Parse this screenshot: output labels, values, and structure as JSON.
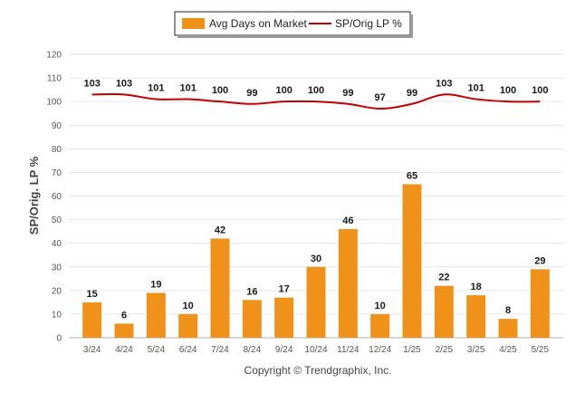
{
  "chart_data": {
    "type": "bar",
    "ylabel": "SP/Orig. LP %",
    "ylim": [
      0,
      120
    ],
    "yticks": [
      0,
      10,
      20,
      30,
      40,
      50,
      60,
      70,
      80,
      90,
      100,
      110,
      120
    ],
    "categories": [
      "3/24",
      "4/24",
      "5/24",
      "6/24",
      "7/24",
      "8/24",
      "9/24",
      "10/24",
      "11/24",
      "12/24",
      "1/25",
      "2/25",
      "3/25",
      "4/25",
      "5/25"
    ],
    "series": [
      {
        "name": "Avg Days on Market",
        "type": "bar",
        "color": "#f0921a",
        "values": [
          15,
          6,
          19,
          10,
          42,
          16,
          17,
          30,
          46,
          10,
          65,
          22,
          18,
          8,
          29
        ]
      },
      {
        "name": "SP/Orig LP %",
        "type": "line",
        "color": "#c00000",
        "values": [
          103,
          103,
          101,
          101,
          100,
          99,
          100,
          100,
          99,
          97,
          99,
          103,
          101,
          100,
          100
        ]
      }
    ],
    "legend_position": "top-center",
    "grid": true
  },
  "footer": {
    "copyright": "Copyright © Trendgraphix, Inc."
  }
}
